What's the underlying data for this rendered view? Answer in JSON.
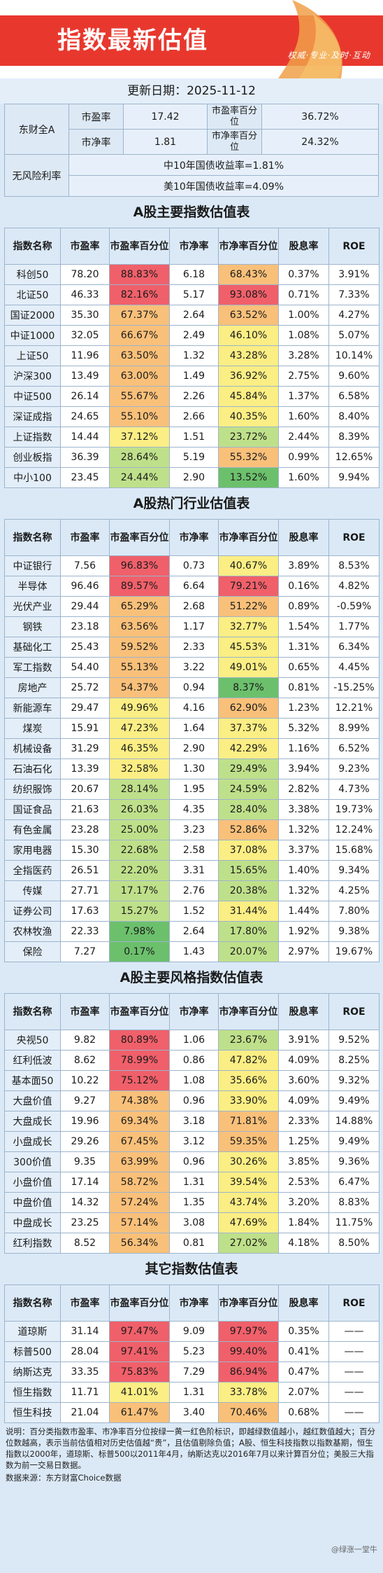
{
  "header": {
    "title": "指数最新估值",
    "slogan": "权威·专业·及时·互动"
  },
  "update": "更新日期：2025-11-12",
  "summary": {
    "group": "东财全A",
    "pe_label": "市盈率",
    "pe": "17.42",
    "pe_pct_label": "市盈率百分位",
    "pe_pct": "36.72%",
    "pb_label": "市净率",
    "pb": "1.81",
    "pb_pct_label": "市净率百分位",
    "pb_pct": "24.32%",
    "rf_label": "无风险利率",
    "rf1": "中10年国债收益率=1.81%",
    "rf2": "美10年国债收益率=4.09%"
  },
  "columns": [
    "指数名称",
    "市盈率",
    "市盈率百分位",
    "市净率",
    "市净率百分位",
    "股息率",
    "ROE"
  ],
  "colors": {
    "red": "#f0606a",
    "orange": "#f9c07a",
    "yellow": "#fbee84",
    "lightgreen": "#bfe08a",
    "green": "#6cc06c"
  },
  "sections": [
    {
      "title": "A股主要指数估值表",
      "rows": [
        [
          "科创50",
          "78.20",
          "88.83%",
          "6.18",
          "68.43%",
          "0.37%",
          "3.91%"
        ],
        [
          "北证50",
          "46.33",
          "82.16%",
          "5.17",
          "93.08%",
          "0.71%",
          "7.33%"
        ],
        [
          "国证2000",
          "35.30",
          "67.37%",
          "2.64",
          "63.52%",
          "1.00%",
          "4.27%"
        ],
        [
          "中证1000",
          "32.05",
          "66.67%",
          "2.49",
          "46.10%",
          "1.08%",
          "5.07%"
        ],
        [
          "上证50",
          "11.96",
          "63.50%",
          "1.32",
          "43.28%",
          "3.28%",
          "10.14%"
        ],
        [
          "沪深300",
          "13.49",
          "63.00%",
          "1.49",
          "36.92%",
          "2.75%",
          "9.60%"
        ],
        [
          "中证500",
          "26.14",
          "55.67%",
          "2.26",
          "45.84%",
          "1.37%",
          "6.58%"
        ],
        [
          "深证成指",
          "24.65",
          "55.10%",
          "2.66",
          "40.35%",
          "1.60%",
          "8.40%"
        ],
        [
          "上证指数",
          "14.44",
          "37.12%",
          "1.51",
          "23.72%",
          "2.44%",
          "8.39%"
        ],
        [
          "创业板指",
          "36.39",
          "28.64%",
          "5.19",
          "55.32%",
          "0.99%",
          "12.65%"
        ],
        [
          "中小100",
          "23.45",
          "24.44%",
          "2.90",
          "13.52%",
          "1.60%",
          "9.94%"
        ]
      ]
    },
    {
      "title": "A股热门行业估值表",
      "rows": [
        [
          "中证银行",
          "7.56",
          "96.83%",
          "0.73",
          "40.67%",
          "3.89%",
          "8.53%"
        ],
        [
          "半导体",
          "96.46",
          "89.57%",
          "6.64",
          "79.21%",
          "0.16%",
          "4.82%"
        ],
        [
          "光伏产业",
          "29.44",
          "65.29%",
          "2.68",
          "51.22%",
          "0.89%",
          "-0.59%"
        ],
        [
          "钢铁",
          "23.18",
          "63.56%",
          "1.17",
          "32.77%",
          "1.54%",
          "1.77%"
        ],
        [
          "基础化工",
          "25.43",
          "59.52%",
          "2.33",
          "45.53%",
          "1.31%",
          "6.34%"
        ],
        [
          "军工指数",
          "54.40",
          "55.13%",
          "3.22",
          "49.01%",
          "0.65%",
          "4.45%"
        ],
        [
          "房地产",
          "25.72",
          "54.37%",
          "0.94",
          "8.37%",
          "0.81%",
          "-15.25%"
        ],
        [
          "新能源车",
          "29.47",
          "49.96%",
          "4.16",
          "62.90%",
          "1.23%",
          "12.21%"
        ],
        [
          "煤炭",
          "15.91",
          "47.23%",
          "1.64",
          "37.37%",
          "5.32%",
          "8.99%"
        ],
        [
          "机械设备",
          "31.29",
          "46.35%",
          "2.90",
          "42.29%",
          "1.16%",
          "6.52%"
        ],
        [
          "石油石化",
          "13.39",
          "32.58%",
          "1.30",
          "29.49%",
          "3.94%",
          "9.23%"
        ],
        [
          "纺织服饰",
          "20.67",
          "28.14%",
          "1.95",
          "24.59%",
          "2.82%",
          "4.73%"
        ],
        [
          "国证食品",
          "21.63",
          "26.03%",
          "4.35",
          "28.40%",
          "3.38%",
          "19.73%"
        ],
        [
          "有色金属",
          "23.28",
          "25.00%",
          "3.23",
          "52.86%",
          "1.32%",
          "12.24%"
        ],
        [
          "家用电器",
          "15.30",
          "22.68%",
          "2.58",
          "37.08%",
          "3.37%",
          "15.68%"
        ],
        [
          "全指医药",
          "26.51",
          "22.20%",
          "3.31",
          "15.65%",
          "1.40%",
          "9.34%"
        ],
        [
          "传媒",
          "27.71",
          "17.17%",
          "2.76",
          "20.38%",
          "1.32%",
          "4.25%"
        ],
        [
          "证券公司",
          "17.63",
          "15.27%",
          "1.52",
          "31.44%",
          "1.44%",
          "7.80%"
        ],
        [
          "农林牧渔",
          "22.33",
          "7.98%",
          "2.64",
          "17.80%",
          "1.92%",
          "9.38%"
        ],
        [
          "保险",
          "7.27",
          "0.17%",
          "1.43",
          "20.07%",
          "2.97%",
          "19.67%"
        ]
      ]
    },
    {
      "title": "A股主要风格指数估值表",
      "rows": [
        [
          "央视50",
          "9.82",
          "80.89%",
          "1.06",
          "23.67%",
          "3.91%",
          "9.52%"
        ],
        [
          "红利低波",
          "8.62",
          "78.99%",
          "0.86",
          "47.82%",
          "4.09%",
          "8.25%"
        ],
        [
          "基本面50",
          "10.22",
          "75.12%",
          "1.08",
          "35.66%",
          "3.60%",
          "9.32%"
        ],
        [
          "大盘价值",
          "9.27",
          "74.38%",
          "0.96",
          "33.90%",
          "4.09%",
          "9.49%"
        ],
        [
          "大盘成长",
          "19.96",
          "69.34%",
          "3.18",
          "71.81%",
          "2.33%",
          "14.88%"
        ],
        [
          "小盘成长",
          "29.26",
          "67.45%",
          "3.12",
          "59.35%",
          "1.25%",
          "9.49%"
        ],
        [
          "300价值",
          "9.35",
          "63.99%",
          "0.96",
          "30.26%",
          "3.85%",
          "9.36%"
        ],
        [
          "小盘价值",
          "17.14",
          "58.72%",
          "1.31",
          "39.54%",
          "2.53%",
          "6.47%"
        ],
        [
          "中盘价值",
          "14.32",
          "57.24%",
          "1.35",
          "43.74%",
          "3.20%",
          "8.83%"
        ],
        [
          "中盘成长",
          "23.25",
          "57.14%",
          "3.08",
          "47.69%",
          "1.84%",
          "11.75%"
        ],
        [
          "红利指数",
          "8.52",
          "56.34%",
          "0.81",
          "27.02%",
          "4.18%",
          "8.50%"
        ]
      ]
    },
    {
      "title": "其它指数估值表",
      "rows": [
        [
          "道琼斯",
          "31.14",
          "97.47%",
          "9.09",
          "97.97%",
          "0.35%",
          "——"
        ],
        [
          "标普500",
          "28.04",
          "97.41%",
          "5.23",
          "99.40%",
          "0.41%",
          "——"
        ],
        [
          "纳斯达克",
          "33.35",
          "75.83%",
          "7.29",
          "86.94%",
          "0.47%",
          "——"
        ],
        [
          "恒生指数",
          "11.71",
          "41.01%",
          "1.31",
          "33.78%",
          "2.07%",
          "——"
        ],
        [
          "恒生科技",
          "21.04",
          "61.47%",
          "3.40",
          "70.46%",
          "0.68%",
          "——"
        ]
      ]
    }
  ],
  "note": "说明：百分类指数市盈率、市净率百分位按绿一黄一红色阶标识，即越绿数值越小，越红数值越大；百分位数越高，表示当前估值相对历史估值越“贵”，且估值剔除负值；A股、恒生科技指数以指数基期，恒生指数以2000年，道琼斯、标普500以2011年4月，纳斯达克以2016年7月以来计算百分位；美股三大指数为前一交易日数据。",
  "source": "数据来源：东方财富Choice数据",
  "watermark": "@绿涨一堂牛"
}
